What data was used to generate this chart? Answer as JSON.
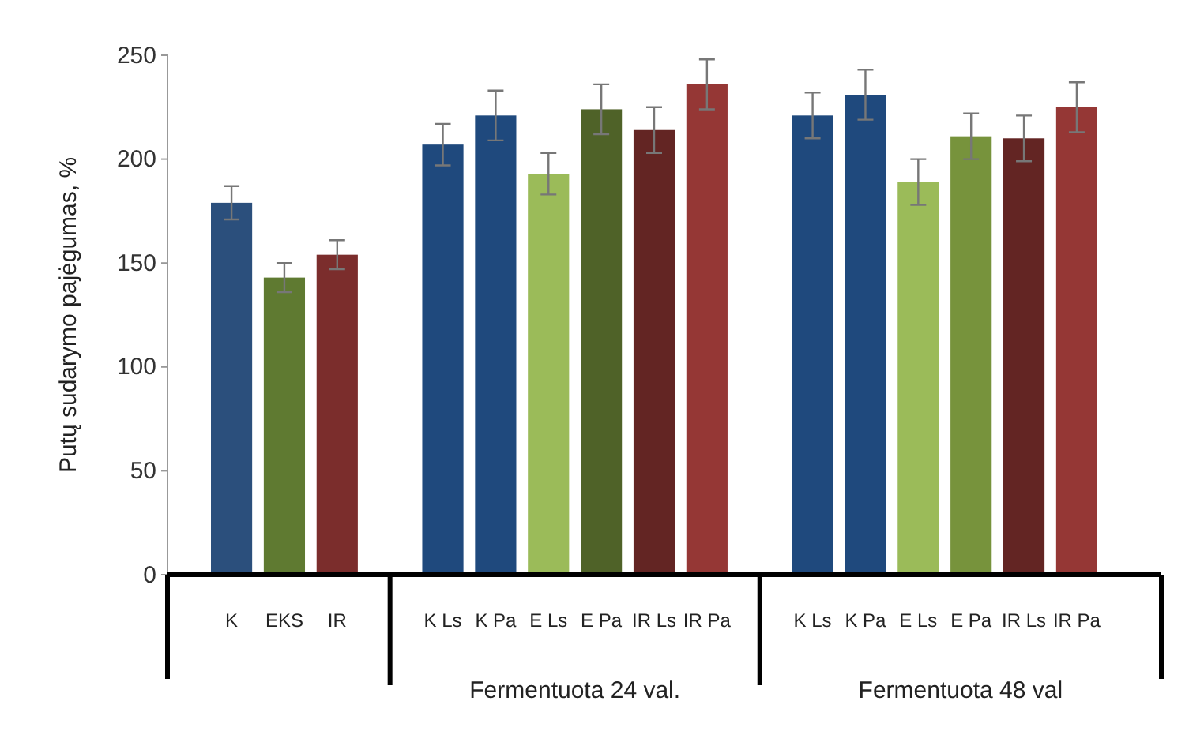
{
  "chart_data": {
    "type": "bar",
    "ylabel": "Putų sudarymo pajėgumas, %",
    "categories": [
      "K",
      "EKS",
      "IR",
      null,
      "K Ls",
      "K Pa",
      "E Ls",
      "E Pa",
      "IR Ls",
      "IR Pa",
      null,
      "K Ls",
      "K Pa",
      "E Ls",
      "E Pa",
      "IR Ls",
      "IR Pa"
    ],
    "values": [
      179,
      143,
      154,
      null,
      207,
      221,
      193,
      224,
      214,
      236,
      null,
      221,
      231,
      189,
      211,
      210,
      225
    ],
    "errors": [
      8,
      7,
      7,
      null,
      10,
      12,
      10,
      12,
      11,
      12,
      null,
      11,
      12,
      11,
      11,
      11,
      12
    ],
    "colors": [
      "#2b4f7c",
      "#5f7a31",
      "#7b2d2c",
      null,
      "#1f497d",
      "#1f497d",
      "#9bbb59",
      "#4f6228",
      "#632523",
      "#953735",
      null,
      "#1f497d",
      "#1f497d",
      "#9bbb59",
      "#77933c",
      "#632523",
      "#953735"
    ],
    "ylim": [
      0,
      250
    ],
    "yticks": [
      0,
      50,
      100,
      150,
      200,
      250
    ],
    "grid": false,
    "annotations": [
      "Fermentuota 24 val.",
      "Fermentuota 48 val"
    ]
  }
}
